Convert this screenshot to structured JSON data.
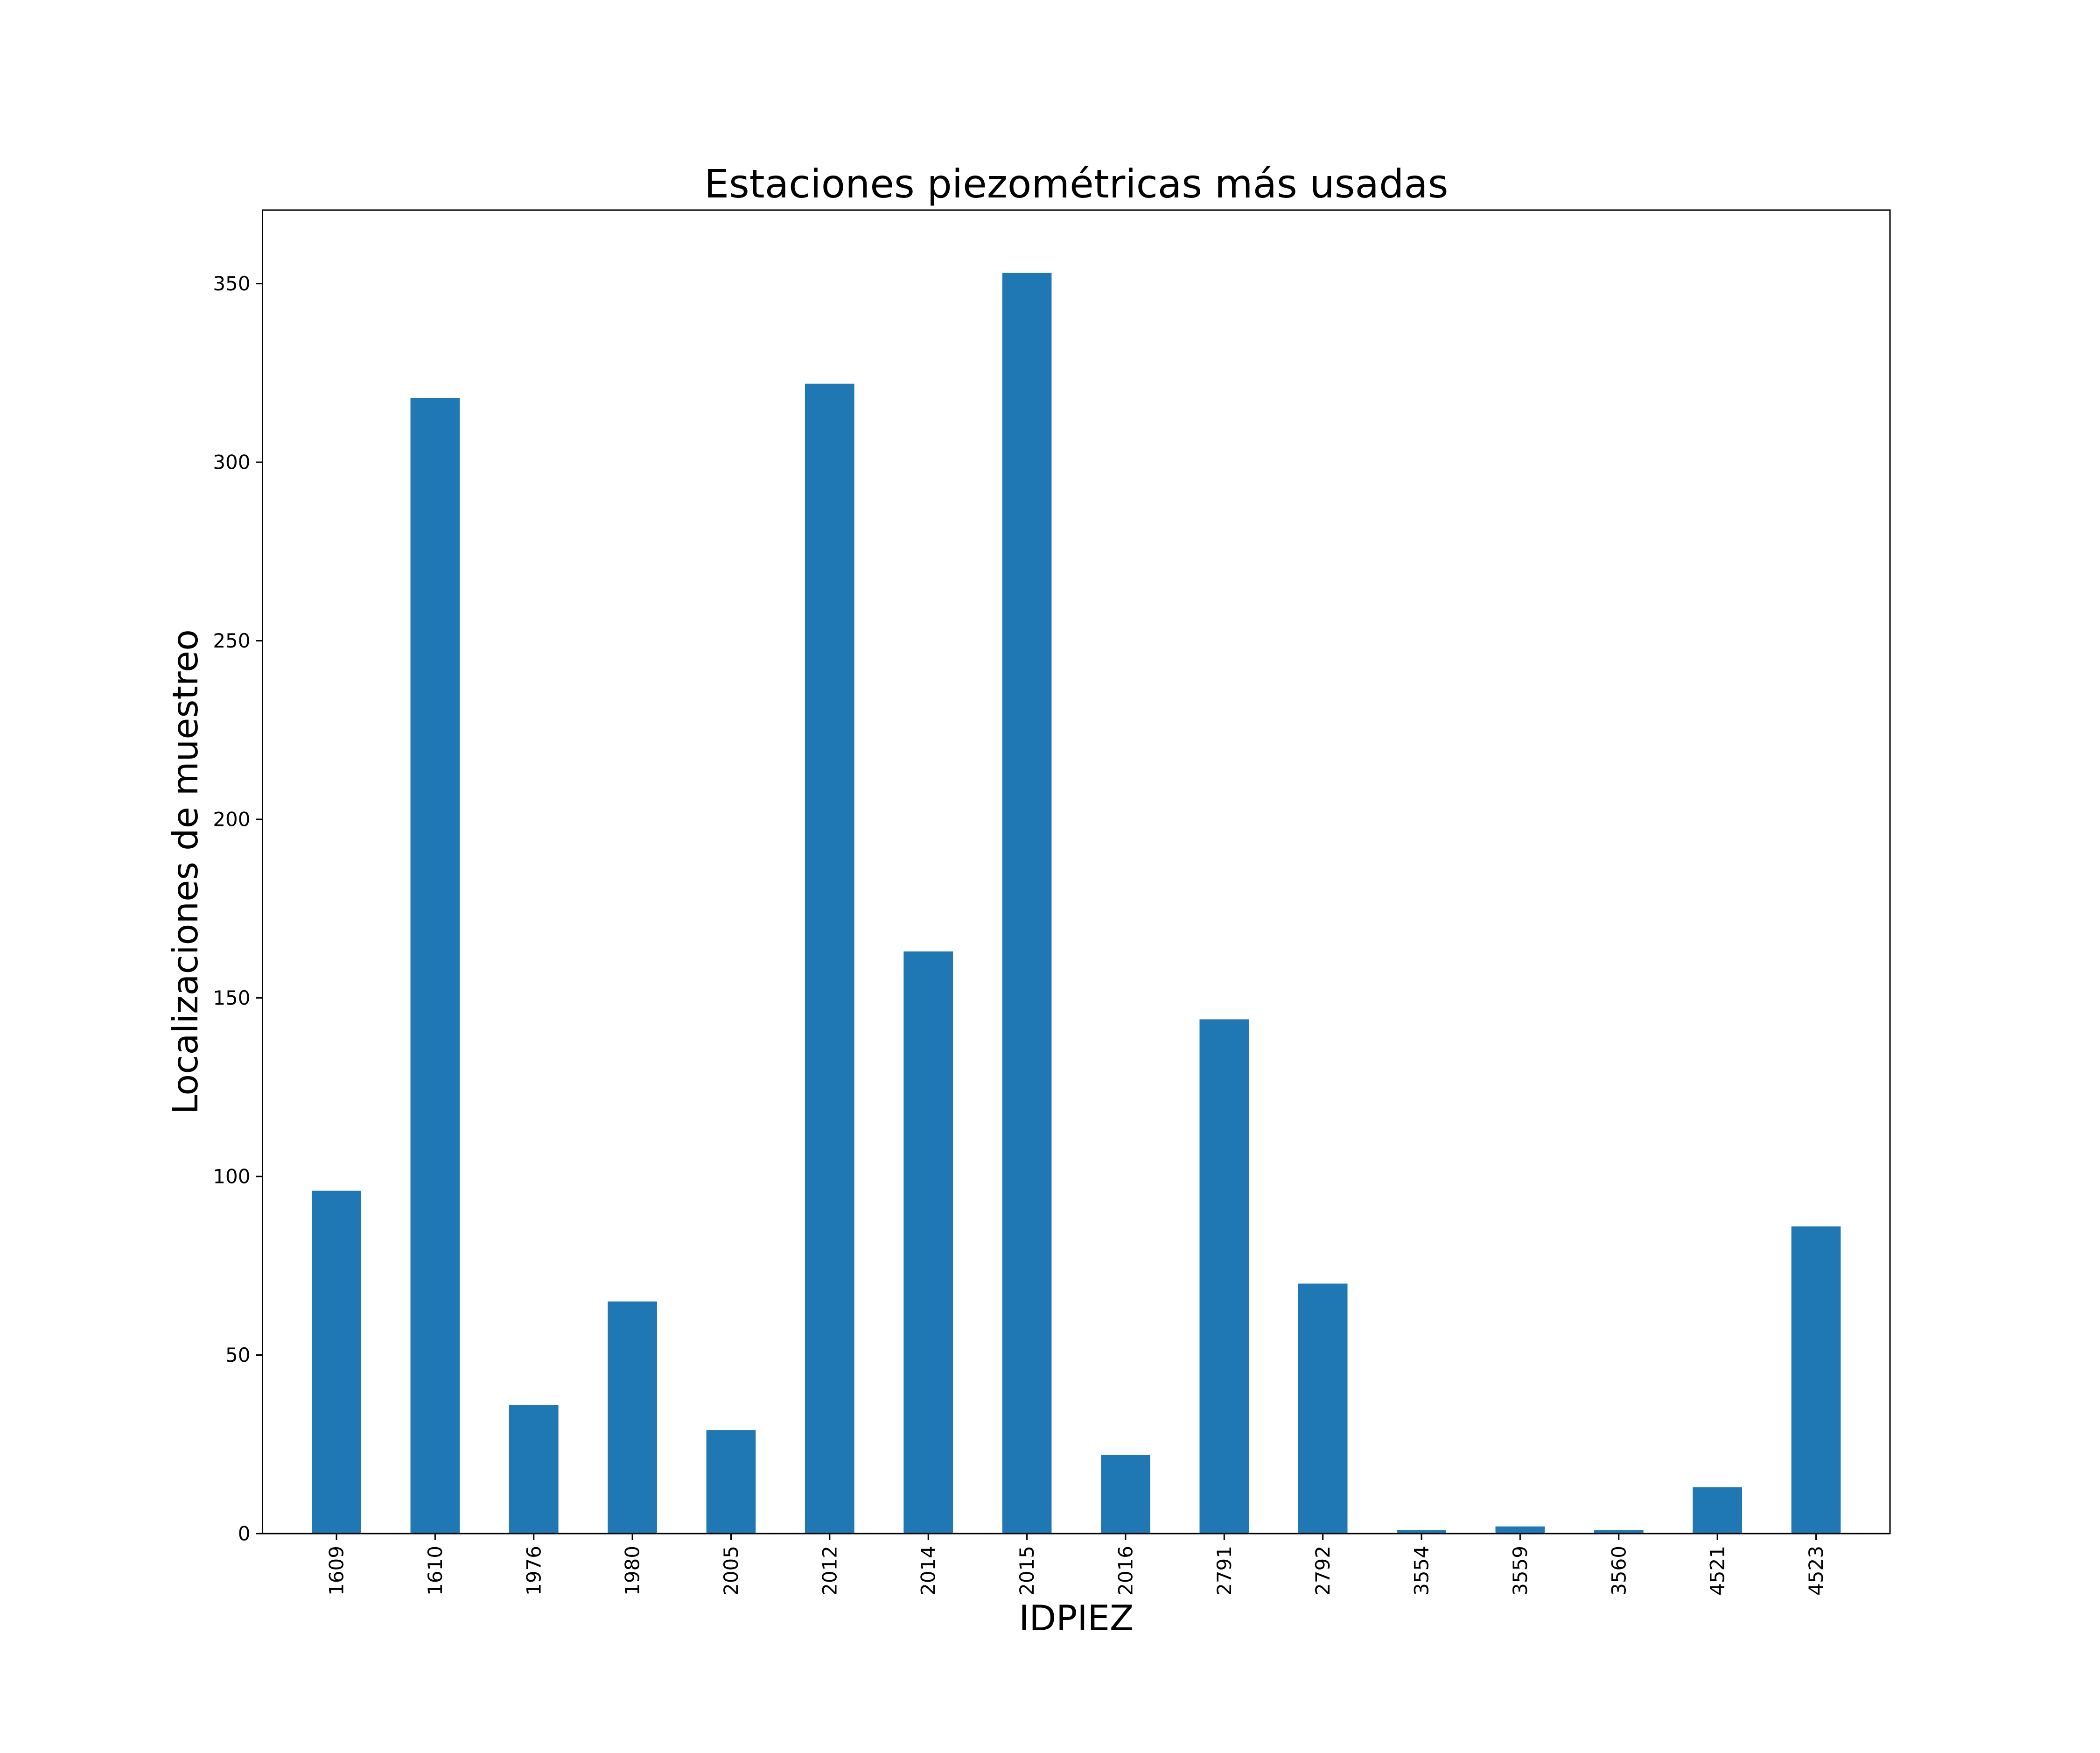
{
  "chart_data": {
    "type": "bar",
    "title": "Estaciones piezométricas más usadas",
    "xlabel": "IDPIEZ",
    "ylabel": "Localizaciones de muestreo",
    "categories": [
      "1609",
      "1610",
      "1976",
      "1980",
      "2005",
      "2012",
      "2014",
      "2015",
      "2016",
      "2791",
      "2792",
      "3554",
      "3559",
      "3560",
      "4521",
      "4523"
    ],
    "values": [
      96,
      318,
      36,
      65,
      29,
      322,
      163,
      353,
      22,
      144,
      70,
      1,
      2,
      1,
      13,
      86
    ],
    "ylim": [
      0,
      370.6
    ],
    "yticks": [
      0,
      50,
      100,
      150,
      200,
      250,
      300,
      350
    ],
    "bar_color": "#1f77b4",
    "grid": false,
    "legend": "none"
  }
}
